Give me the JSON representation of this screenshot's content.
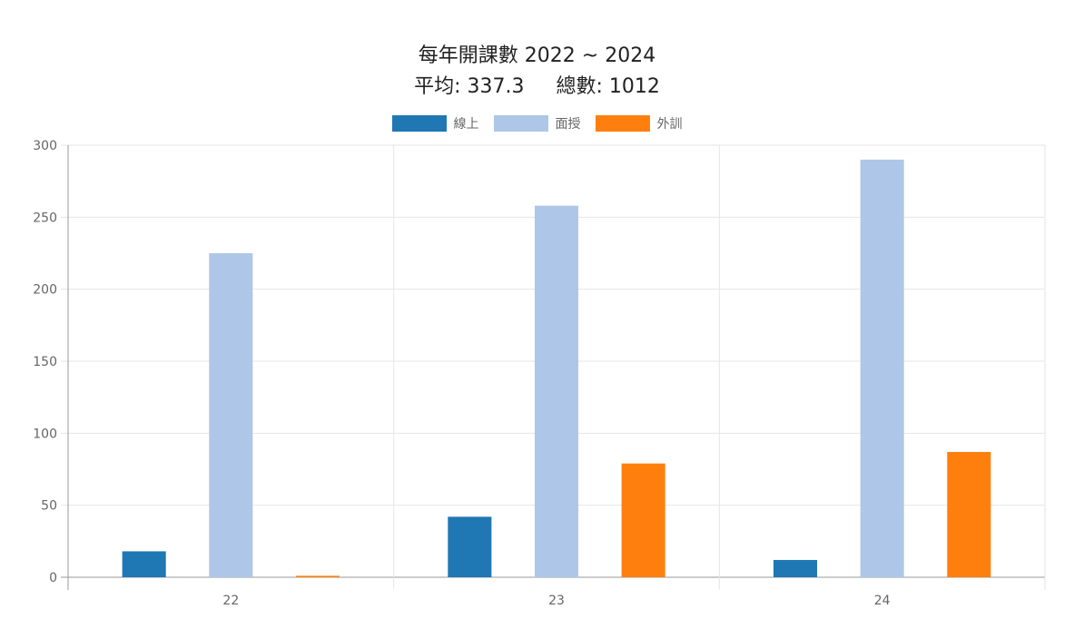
{
  "chart_data": {
    "type": "bar",
    "title": "每年開課數 2022 ~ 2024",
    "subtitle": "平均: 337.3     總數: 1012",
    "categories": [
      "22",
      "23",
      "24"
    ],
    "series": [
      {
        "name": "線上",
        "color": "#1f77b4",
        "values": [
          18,
          42,
          12
        ]
      },
      {
        "name": "面授",
        "color": "#aec7e8",
        "values": [
          225,
          258,
          290
        ]
      },
      {
        "name": "外訓",
        "color": "#ff7f0e",
        "values": [
          1,
          79,
          87
        ]
      }
    ],
    "ylim": [
      0,
      300
    ],
    "yticks": [
      0,
      50,
      100,
      150,
      200,
      250,
      300
    ],
    "grid": true,
    "legend": "top-center",
    "xlabel": "",
    "ylabel": ""
  }
}
